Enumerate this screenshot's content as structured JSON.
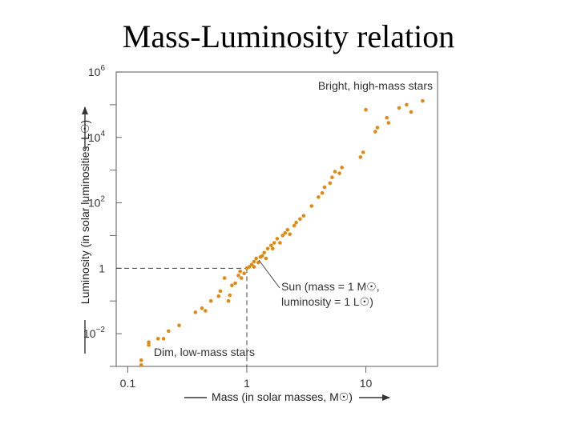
{
  "slide": {
    "title": "Mass-Luminosity relation"
  },
  "colors": {
    "points": "#e08a12",
    "axis": "#555555",
    "guide": "#444444"
  },
  "chart_data": {
    "type": "scatter",
    "title": "",
    "xlabel": "Mass (in solar masses, M☉)",
    "ylabel": "Luminosity (in solar luminosities, L☉)",
    "x_scale": "log",
    "y_scale": "log",
    "xlim": [
      0.08,
      40
    ],
    "ylim": [
      0.001,
      1000000.0
    ],
    "x_ticks": [
      {
        "value": 0.1,
        "label": "0.1"
      },
      {
        "value": 1,
        "label": "1"
      },
      {
        "value": 10,
        "label": "10"
      }
    ],
    "y_ticks": [
      {
        "value": 0.01,
        "base": "10",
        "exp": "−2"
      },
      {
        "value": 1,
        "base": "1",
        "exp": ""
      },
      {
        "value": 100.0,
        "base": "10",
        "exp": "2"
      },
      {
        "value": 10000.0,
        "base": "10",
        "exp": "4"
      },
      {
        "value": 1000000.0,
        "base": "10",
        "exp": "6"
      }
    ],
    "y_minor_ticks": [
      0.001,
      0.1,
      10.0,
      1000.0,
      100000.0
    ],
    "annotations": {
      "bright": "Bright, high-mass stars",
      "dim": "Dim, low-mass stars",
      "sun_line1": "Sun (mass = 1 M☉,",
      "sun_line2": "luminosity = 1 L☉)"
    },
    "sun_point": {
      "x": 1,
      "y": 1
    },
    "points": [
      {
        "x": 0.13,
        "y": 0.00155
      },
      {
        "x": 0.13,
        "y": 0.0011
      },
      {
        "x": 0.15,
        "y": 0.0045
      },
      {
        "x": 0.15,
        "y": 0.0055
      },
      {
        "x": 0.18,
        "y": 0.007
      },
      {
        "x": 0.2,
        "y": 0.007
      },
      {
        "x": 0.22,
        "y": 0.012
      },
      {
        "x": 0.27,
        "y": 0.018
      },
      {
        "x": 0.37,
        "y": 0.045
      },
      {
        "x": 0.42,
        "y": 0.06
      },
      {
        "x": 0.45,
        "y": 0.05
      },
      {
        "x": 0.5,
        "y": 0.1
      },
      {
        "x": 0.58,
        "y": 0.14
      },
      {
        "x": 0.6,
        "y": 0.2
      },
      {
        "x": 0.65,
        "y": 0.5
      },
      {
        "x": 0.7,
        "y": 0.1
      },
      {
        "x": 0.72,
        "y": 0.15
      },
      {
        "x": 0.75,
        "y": 0.3
      },
      {
        "x": 0.8,
        "y": 0.35
      },
      {
        "x": 0.85,
        "y": 0.6
      },
      {
        "x": 0.88,
        "y": 0.8
      },
      {
        "x": 0.9,
        "y": 0.5
      },
      {
        "x": 0.95,
        "y": 0.7
      },
      {
        "x": 1.0,
        "y": 1.0
      },
      {
        "x": 1.05,
        "y": 1.1
      },
      {
        "x": 1.1,
        "y": 1.3
      },
      {
        "x": 1.15,
        "y": 1.6
      },
      {
        "x": 1.15,
        "y": 1.1
      },
      {
        "x": 1.2,
        "y": 2.0
      },
      {
        "x": 1.25,
        "y": 1.5
      },
      {
        "x": 1.3,
        "y": 2.2
      },
      {
        "x": 1.35,
        "y": 2.4
      },
      {
        "x": 1.4,
        "y": 3.0
      },
      {
        "x": 1.45,
        "y": 2.0
      },
      {
        "x": 1.5,
        "y": 4.0
      },
      {
        "x": 1.6,
        "y": 5.0
      },
      {
        "x": 1.65,
        "y": 4.0
      },
      {
        "x": 1.7,
        "y": 6.0
      },
      {
        "x": 1.8,
        "y": 8.0
      },
      {
        "x": 1.9,
        "y": 6.0
      },
      {
        "x": 2.0,
        "y": 10.0
      },
      {
        "x": 2.1,
        "y": 12.0
      },
      {
        "x": 2.2,
        "y": 15.0
      },
      {
        "x": 2.3,
        "y": 11.0
      },
      {
        "x": 2.5,
        "y": 20.0
      },
      {
        "x": 2.6,
        "y": 25.0
      },
      {
        "x": 2.8,
        "y": 32.0
      },
      {
        "x": 3.0,
        "y": 40.0
      },
      {
        "x": 3.5,
        "y": 80.0
      },
      {
        "x": 4.0,
        "y": 150.0
      },
      {
        "x": 4.3,
        "y": 200.0
      },
      {
        "x": 4.5,
        "y": 300.0
      },
      {
        "x": 5.0,
        "y": 400.0
      },
      {
        "x": 5.2,
        "y": 600.0
      },
      {
        "x": 5.5,
        "y": 900.0
      },
      {
        "x": 6.0,
        "y": 800.0
      },
      {
        "x": 6.3,
        "y": 1200.0
      },
      {
        "x": 9.0,
        "y": 2500.0
      },
      {
        "x": 9.5,
        "y": 3500.0
      },
      {
        "x": 10.0,
        "y": 70000.0
      },
      {
        "x": 12.0,
        "y": 15000.0
      },
      {
        "x": 12.5,
        "y": 20000.0
      },
      {
        "x": 15.0,
        "y": 40000.0
      },
      {
        "x": 15.5,
        "y": 28000.0
      },
      {
        "x": 19.0,
        "y": 80000.0
      },
      {
        "x": 22.0,
        "y": 100000.0
      },
      {
        "x": 24.0,
        "y": 60000.0
      },
      {
        "x": 30.0,
        "y": 130000.0
      }
    ]
  }
}
